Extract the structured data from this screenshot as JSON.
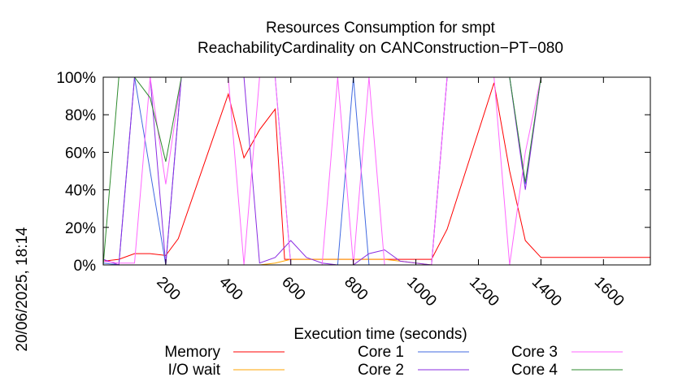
{
  "chart_data": {
    "type": "line",
    "title": "Resources Consumption for smpt",
    "subtitle": "ReachabilityCardinality on CANConstruction−PT−080",
    "xlabel": "Execution time (seconds)",
    "ylabel": "",
    "side_label": "20/06/2025, 18:14",
    "xlim": [
      0,
      1750
    ],
    "ylim": [
      0,
      100
    ],
    "x_ticks": [
      "200",
      "400",
      "600",
      "800",
      "1000",
      "1200",
      "1400",
      "1600"
    ],
    "x_tick_values": [
      200,
      400,
      600,
      800,
      1000,
      1200,
      1400,
      1600
    ],
    "y_ticks": [
      "0%",
      "20%",
      "40%",
      "60%",
      "80%",
      "100%"
    ],
    "y_tick_values": [
      0,
      20,
      40,
      60,
      80,
      100
    ],
    "grid": false,
    "legend_placement": "bottom",
    "series": [
      {
        "name": "Memory",
        "color": "#ff0000",
        "x": [
          0,
          50,
          100,
          150,
          200,
          240,
          400,
          450,
          500,
          550,
          580,
          600,
          650,
          700,
          750,
          800,
          850,
          900,
          950,
          1000,
          1050,
          1100,
          1250,
          1300,
          1350,
          1400,
          1450,
          1500,
          1750
        ],
        "y": [
          2,
          3,
          6,
          6,
          5,
          14,
          91,
          57,
          72,
          83,
          3,
          3,
          3,
          3,
          3,
          3,
          3,
          3,
          3,
          3,
          3,
          19,
          97,
          50,
          13,
          4,
          4,
          4,
          4
        ]
      },
      {
        "name": "I/O wait",
        "color": "#ffa500",
        "x": [
          0,
          100,
          200,
          300,
          400,
          500,
          550,
          600,
          650,
          700,
          750,
          800,
          850,
          900,
          950,
          1000,
          1050,
          1100,
          1750
        ],
        "y": [
          0,
          0,
          0,
          0,
          0,
          0,
          1,
          3,
          3,
          3,
          3,
          3,
          3,
          3,
          2,
          1,
          0,
          0,
          0
        ]
      },
      {
        "name": "Core 1",
        "color": "#4169e1",
        "x": [
          0,
          50,
          100,
          200,
          250,
          400,
          450,
          500,
          550,
          600,
          650,
          700,
          750,
          800,
          850,
          900,
          950,
          1000,
          1050,
          1100,
          1150,
          1200,
          1300,
          1350,
          1400,
          1750
        ],
        "y": [
          1,
          0,
          100,
          0,
          100,
          100,
          100,
          100,
          100,
          0,
          0,
          0,
          0,
          100,
          0,
          0,
          0,
          0,
          0,
          100,
          100,
          100,
          100,
          43,
          100,
          100
        ]
      },
      {
        "name": "Core 2",
        "color": "#8a2be2",
        "x": [
          0,
          50,
          100,
          150,
          200,
          250,
          400,
          450,
          500,
          550,
          600,
          650,
          700,
          750,
          800,
          850,
          900,
          950,
          1000,
          1050,
          1100,
          1150,
          1200,
          1300,
          1350,
          1400,
          1750
        ],
        "y": [
          3,
          0,
          100,
          100,
          0,
          100,
          100,
          100,
          1,
          4,
          13,
          4,
          1,
          0,
          0,
          6,
          8,
          2,
          1,
          0,
          100,
          100,
          100,
          100,
          40,
          100,
          100
        ]
      },
      {
        "name": "Core 3",
        "color": "#ff66ff",
        "x": [
          0,
          50,
          100,
          150,
          200,
          250,
          400,
          450,
          500,
          550,
          600,
          650,
          700,
          750,
          800,
          850,
          900,
          950,
          1000,
          1050,
          1100,
          1150,
          1200,
          1250,
          1300,
          1350,
          1400,
          1750
        ],
        "y": [
          2,
          1,
          1,
          100,
          43,
          100,
          100,
          0,
          100,
          100,
          0,
          0,
          0,
          100,
          0,
          100,
          0,
          0,
          0,
          0,
          100,
          100,
          100,
          100,
          0,
          60,
          100,
          100
        ]
      },
      {
        "name": "Core 4",
        "color": "#2e8b2e",
        "x": [
          0,
          50,
          100,
          150,
          200,
          250,
          400,
          750,
          1100,
          1300,
          1350,
          1400,
          1750
        ],
        "y": [
          0,
          100,
          100,
          89,
          55,
          100,
          100,
          100,
          100,
          100,
          44,
          100,
          100
        ]
      }
    ]
  }
}
